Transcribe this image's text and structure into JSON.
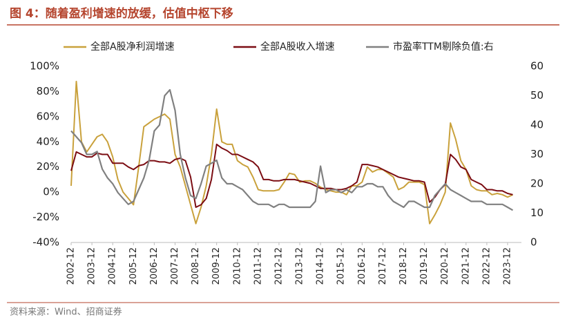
{
  "chart_data": {
    "type": "line",
    "title": "图 4：随着盈利增速的放缓，估值中枢下移",
    "source": "资料来源：Wind、招商证券",
    "categories": [
      "2002-12",
      null,
      null,
      null,
      "2003-12",
      null,
      null,
      null,
      "2004-12",
      null,
      null,
      null,
      "2005-12",
      null,
      null,
      null,
      "2006-12",
      null,
      null,
      null,
      "2007-12",
      null,
      null,
      null,
      "2008-12",
      null,
      null,
      null,
      "2009-12",
      null,
      null,
      null,
      "2010-12",
      null,
      null,
      null,
      "2011-12",
      null,
      null,
      null,
      "2012-12",
      null,
      null,
      null,
      "2013-12",
      null,
      null,
      null,
      "2014-12",
      null,
      null,
      null,
      "2015-12",
      null,
      null,
      null,
      "2016-12",
      null,
      null,
      null,
      "2017-12",
      null,
      null,
      null,
      "2018-12",
      null,
      null,
      null,
      "2019-12",
      null,
      null,
      null,
      "2020-12",
      null,
      null,
      null,
      "2021-12",
      null,
      null,
      null,
      "2022-12",
      null,
      null,
      null,
      "2023-12",
      null
    ],
    "series": [
      {
        "name": "全部A股净利润增速",
        "color": "#C9A13B",
        "values": [
          5,
          88,
          40,
          32,
          38,
          44,
          46,
          40,
          28,
          10,
          0,
          -5,
          -10,
          20,
          52,
          55,
          58,
          60,
          62,
          58,
          30,
          20,
          5,
          -10,
          -25,
          -12,
          5,
          30,
          66,
          40,
          38,
          38,
          25,
          22,
          20,
          12,
          2,
          1,
          1,
          1,
          2,
          8,
          15,
          14,
          8,
          9,
          9,
          7,
          4,
          2,
          1,
          0,
          0,
          -2,
          5,
          5,
          8,
          20,
          16,
          18,
          18,
          15,
          12,
          2,
          4,
          8,
          8,
          8,
          6,
          -25,
          -18,
          -10,
          0,
          55,
          42,
          25,
          18,
          5,
          2,
          1,
          1,
          -2,
          -1,
          -2,
          -4,
          -2
        ]
      },
      {
        "name": "全部A股收入增速",
        "color": "#7B0C12",
        "values": [
          17,
          32,
          30,
          28,
          28,
          31,
          30,
          30,
          23,
          23,
          23,
          20,
          18,
          21,
          22,
          25,
          25,
          24,
          24,
          23,
          26,
          27,
          25,
          12,
          -12,
          -10,
          -5,
          10,
          38,
          35,
          33,
          30,
          30,
          28,
          26,
          24,
          20,
          10,
          10,
          9,
          9,
          10,
          10,
          10,
          9,
          8,
          7,
          5,
          3,
          3,
          3,
          2,
          2,
          3,
          5,
          8,
          22,
          22,
          21,
          20,
          18,
          16,
          14,
          12,
          11,
          10,
          9,
          9,
          8,
          -8,
          -4,
          2,
          6,
          30,
          26,
          20,
          18,
          10,
          8,
          6,
          2,
          2,
          1,
          1,
          -1,
          -2
        ]
      },
      {
        "name": "市盈率TTM剔除负值:右",
        "color": "#808080",
        "axis": "y2",
        "values": [
          38,
          36,
          34,
          30,
          30,
          31,
          25,
          22,
          20,
          17,
          15,
          13,
          14,
          18,
          22,
          28,
          38,
          40,
          50,
          52,
          45,
          30,
          22,
          16,
          15,
          20,
          26,
          27,
          28,
          22,
          20,
          20,
          19,
          18,
          16,
          14,
          13,
          13,
          13,
          12,
          13,
          13,
          12,
          12,
          12,
          12,
          12,
          14,
          26,
          17,
          18,
          18,
          17,
          18,
          17,
          19,
          19,
          20,
          20,
          19,
          19,
          16,
          14,
          13,
          12,
          14,
          14,
          13,
          12,
          12,
          16,
          18,
          20,
          18,
          17,
          16,
          15,
          14,
          14,
          14,
          13,
          13,
          13,
          13,
          12,
          11
        ]
      }
    ],
    "ylim": [
      -40,
      100
    ],
    "yticks": [
      {
        "value": -40,
        "label": "-40%"
      },
      {
        "value": -20,
        "label": "-20%"
      },
      {
        "value": 0,
        "label": "0%"
      },
      {
        "value": 20,
        "label": "20%"
      },
      {
        "value": 40,
        "label": "40%"
      },
      {
        "value": 60,
        "label": "60%"
      },
      {
        "value": 80,
        "label": "80%"
      },
      {
        "value": 100,
        "label": "100%"
      }
    ],
    "y2lim": [
      0,
      60
    ],
    "y2ticks": [
      0,
      10,
      20,
      30,
      40,
      50,
      60
    ],
    "legend": "top"
  }
}
